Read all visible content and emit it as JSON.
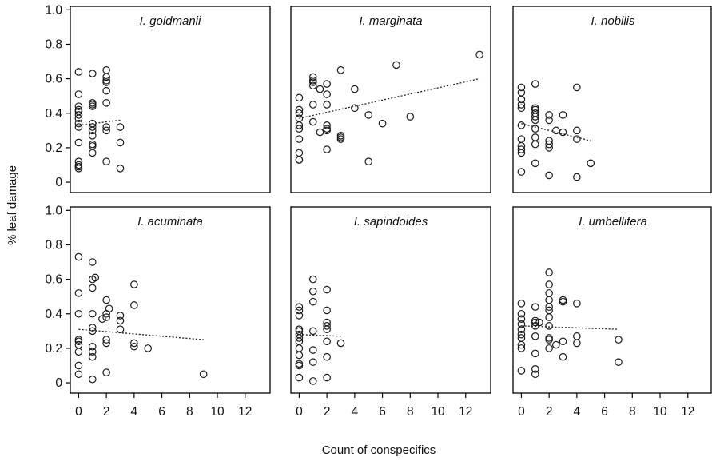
{
  "chart_data": {
    "type": "scatter",
    "layout": "2x3 small multiples",
    "xlabel": "Count of conspecifics",
    "ylabel": "% leaf damage",
    "xlim": [
      -0.6,
      13.8
    ],
    "ylim": [
      -0.06,
      1.02
    ],
    "x_ticks": [
      "0",
      "2",
      "4",
      "6",
      "8",
      "10",
      "12"
    ],
    "y_ticks": [
      "0",
      "0.2",
      "0.4",
      "0.6",
      "0.8",
      "1.0"
    ],
    "trend_style": "dotted linear fit",
    "panels": [
      {
        "title": "I. goldmanii",
        "points": [
          [
            0,
            0.64
          ],
          [
            0,
            0.51
          ],
          [
            0,
            0.44
          ],
          [
            0,
            0.42
          ],
          [
            0,
            0.41
          ],
          [
            0,
            0.39
          ],
          [
            0,
            0.37
          ],
          [
            0,
            0.34
          ],
          [
            0,
            0.32
          ],
          [
            0,
            0.23
          ],
          [
            0,
            0.12
          ],
          [
            0,
            0.1
          ],
          [
            0,
            0.09
          ],
          [
            0,
            0.08
          ],
          [
            1,
            0.63
          ],
          [
            1,
            0.46
          ],
          [
            1,
            0.45
          ],
          [
            1,
            0.44
          ],
          [
            1,
            0.34
          ],
          [
            1,
            0.32
          ],
          [
            1,
            0.3
          ],
          [
            1,
            0.27
          ],
          [
            1,
            0.22
          ],
          [
            1,
            0.21
          ],
          [
            1,
            0.17
          ],
          [
            2,
            0.65
          ],
          [
            2,
            0.61
          ],
          [
            2,
            0.59
          ],
          [
            2,
            0.58
          ],
          [
            2,
            0.53
          ],
          [
            2,
            0.46
          ],
          [
            2,
            0.32
          ],
          [
            2,
            0.3
          ],
          [
            2,
            0.12
          ],
          [
            3,
            0.32
          ],
          [
            3,
            0.23
          ],
          [
            3,
            0.08
          ]
        ],
        "trend": {
          "x": [
            0,
            3
          ],
          "y": [
            0.33,
            0.36
          ]
        }
      },
      {
        "title": "I. marginata",
        "points": [
          [
            0,
            0.49
          ],
          [
            0,
            0.42
          ],
          [
            0,
            0.4
          ],
          [
            0,
            0.37
          ],
          [
            0,
            0.33
          ],
          [
            0,
            0.31
          ],
          [
            0,
            0.25
          ],
          [
            0,
            0.17
          ],
          [
            0,
            0.13
          ],
          [
            0,
            0.13
          ],
          [
            1,
            0.61
          ],
          [
            1,
            0.59
          ],
          [
            1,
            0.58
          ],
          [
            1,
            0.56
          ],
          [
            1,
            0.45
          ],
          [
            1,
            0.35
          ],
          [
            2,
            0.57
          ],
          [
            2,
            0.51
          ],
          [
            2,
            0.45
          ],
          [
            2,
            0.33
          ],
          [
            2,
            0.31
          ],
          [
            2,
            0.3
          ],
          [
            2,
            0.19
          ],
          [
            1.5,
            0.54
          ],
          [
            1.5,
            0.29
          ],
          [
            3,
            0.65
          ],
          [
            3,
            0.27
          ],
          [
            3,
            0.26
          ],
          [
            3,
            0.25
          ],
          [
            4,
            0.54
          ],
          [
            4,
            0.43
          ],
          [
            5,
            0.39
          ],
          [
            5,
            0.12
          ],
          [
            6,
            0.34
          ],
          [
            7,
            0.68
          ],
          [
            8,
            0.38
          ],
          [
            13,
            0.74
          ]
        ],
        "trend": {
          "x": [
            0,
            13
          ],
          "y": [
            0.37,
            0.6
          ]
        }
      },
      {
        "title": "I. nobilis",
        "points": [
          [
            0,
            0.55
          ],
          [
            0,
            0.52
          ],
          [
            0,
            0.48
          ],
          [
            0,
            0.45
          ],
          [
            0,
            0.43
          ],
          [
            0,
            0.33
          ],
          [
            0,
            0.25
          ],
          [
            0,
            0.21
          ],
          [
            0,
            0.19
          ],
          [
            0,
            0.17
          ],
          [
            0,
            0.06
          ],
          [
            1,
            0.57
          ],
          [
            1,
            0.43
          ],
          [
            1,
            0.42
          ],
          [
            1,
            0.4
          ],
          [
            1,
            0.38
          ],
          [
            1,
            0.36
          ],
          [
            1,
            0.31
          ],
          [
            1,
            0.26
          ],
          [
            1,
            0.22
          ],
          [
            1,
            0.11
          ],
          [
            2,
            0.39
          ],
          [
            2,
            0.36
          ],
          [
            2,
            0.24
          ],
          [
            2,
            0.22
          ],
          [
            2,
            0.2
          ],
          [
            2,
            0.04
          ],
          [
            2.5,
            0.3
          ],
          [
            3,
            0.39
          ],
          [
            3,
            0.29
          ],
          [
            4,
            0.55
          ],
          [
            4,
            0.3
          ],
          [
            4,
            0.25
          ],
          [
            4,
            0.03
          ],
          [
            5,
            0.11
          ]
        ],
        "trend": {
          "x": [
            0,
            5
          ],
          "y": [
            0.34,
            0.24
          ]
        }
      },
      {
        "title": "I. acuminata",
        "points": [
          [
            0,
            0.73
          ],
          [
            0,
            0.52
          ],
          [
            0,
            0.4
          ],
          [
            0,
            0.25
          ],
          [
            0,
            0.24
          ],
          [
            0,
            0.22
          ],
          [
            0,
            0.18
          ],
          [
            0,
            0.1
          ],
          [
            0,
            0.05
          ],
          [
            1,
            0.7
          ],
          [
            1,
            0.6
          ],
          [
            1,
            0.55
          ],
          [
            1,
            0.4
          ],
          [
            1,
            0.32
          ],
          [
            1,
            0.3
          ],
          [
            1,
            0.21
          ],
          [
            1,
            0.18
          ],
          [
            1,
            0.15
          ],
          [
            1,
            0.02
          ],
          [
            1.2,
            0.61
          ],
          [
            2,
            0.48
          ],
          [
            2,
            0.4
          ],
          [
            2,
            0.38
          ],
          [
            2,
            0.25
          ],
          [
            2,
            0.23
          ],
          [
            2,
            0.06
          ],
          [
            2.2,
            0.43
          ],
          [
            3,
            0.39
          ],
          [
            3,
            0.36
          ],
          [
            3,
            0.31
          ],
          [
            4,
            0.57
          ],
          [
            4,
            0.45
          ],
          [
            4,
            0.23
          ],
          [
            4,
            0.21
          ],
          [
            5,
            0.2
          ],
          [
            9,
            0.05
          ],
          [
            1.7,
            0.37
          ]
        ],
        "trend": {
          "x": [
            0,
            9
          ],
          "y": [
            0.31,
            0.25
          ]
        }
      },
      {
        "title": "I. sapindoides",
        "points": [
          [
            0,
            0.44
          ],
          [
            0,
            0.42
          ],
          [
            0,
            0.39
          ],
          [
            0,
            0.31
          ],
          [
            0,
            0.3
          ],
          [
            0,
            0.28
          ],
          [
            0,
            0.26
          ],
          [
            0,
            0.24
          ],
          [
            0,
            0.2
          ],
          [
            0,
            0.16
          ],
          [
            0,
            0.11
          ],
          [
            0,
            0.1
          ],
          [
            0,
            0.03
          ],
          [
            1,
            0.6
          ],
          [
            1,
            0.53
          ],
          [
            1,
            0.47
          ],
          [
            1,
            0.3
          ],
          [
            1,
            0.19
          ],
          [
            1,
            0.12
          ],
          [
            1,
            0.01
          ],
          [
            2,
            0.54
          ],
          [
            2,
            0.42
          ],
          [
            2,
            0.35
          ],
          [
            2,
            0.33
          ],
          [
            2,
            0.31
          ],
          [
            2,
            0.24
          ],
          [
            2,
            0.15
          ],
          [
            2,
            0.03
          ],
          [
            3,
            0.23
          ]
        ],
        "trend": {
          "x": [
            0,
            3
          ],
          "y": [
            0.28,
            0.27
          ]
        }
      },
      {
        "title": "I. umbellifera",
        "points": [
          [
            0,
            0.46
          ],
          [
            0,
            0.4
          ],
          [
            0,
            0.37
          ],
          [
            0,
            0.34
          ],
          [
            0,
            0.31
          ],
          [
            0,
            0.28
          ],
          [
            0,
            0.26
          ],
          [
            0,
            0.22
          ],
          [
            0,
            0.2
          ],
          [
            0,
            0.07
          ],
          [
            1,
            0.44
          ],
          [
            1,
            0.36
          ],
          [
            1,
            0.35
          ],
          [
            1,
            0.33
          ],
          [
            1,
            0.27
          ],
          [
            1,
            0.17
          ],
          [
            1,
            0.08
          ],
          [
            1,
            0.05
          ],
          [
            1.3,
            0.35
          ],
          [
            2,
            0.64
          ],
          [
            2,
            0.57
          ],
          [
            2,
            0.52
          ],
          [
            2,
            0.48
          ],
          [
            2,
            0.44
          ],
          [
            2,
            0.42
          ],
          [
            2,
            0.38
          ],
          [
            2,
            0.33
          ],
          [
            2,
            0.26
          ],
          [
            2,
            0.25
          ],
          [
            2,
            0.2
          ],
          [
            2.5,
            0.22
          ],
          [
            3,
            0.48
          ],
          [
            3,
            0.47
          ],
          [
            3,
            0.24
          ],
          [
            3,
            0.15
          ],
          [
            4,
            0.46
          ],
          [
            4,
            0.27
          ],
          [
            4,
            0.23
          ],
          [
            7,
            0.25
          ],
          [
            7,
            0.12
          ]
        ],
        "trend": {
          "x": [
            0,
            7
          ],
          "y": [
            0.33,
            0.31
          ]
        }
      }
    ]
  }
}
